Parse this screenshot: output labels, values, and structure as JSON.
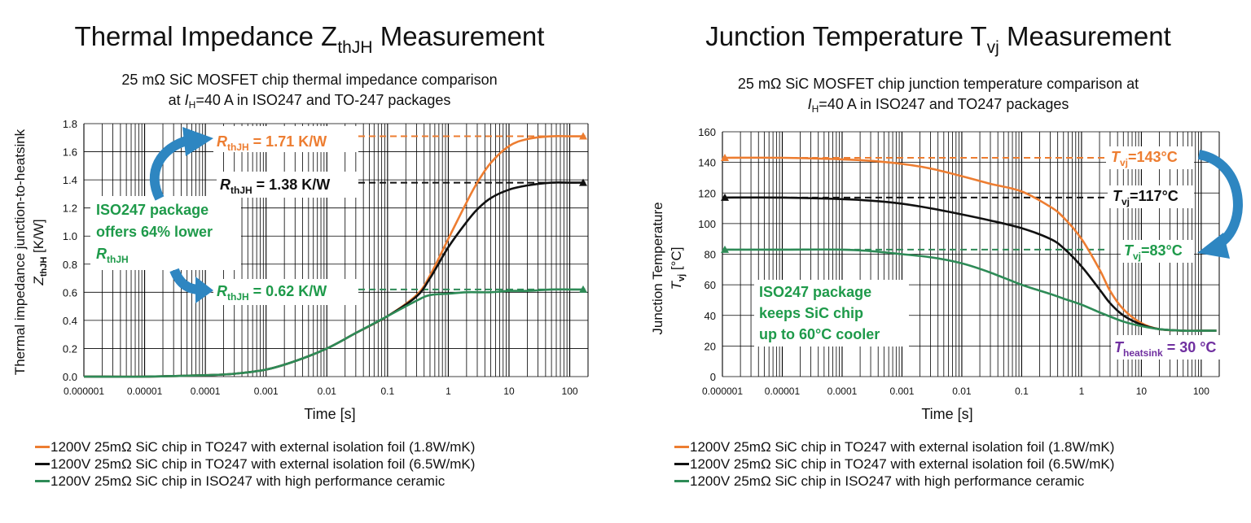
{
  "colors": {
    "orange": "#ed7d31",
    "black": "#111111",
    "green": "#2e8b57",
    "green_text": "#1e9a4a",
    "purple": "#7030a0",
    "arrow": "#2e86c1"
  },
  "icons": [
    "blue-curved-arrow-icon",
    "triangle-marker-icon"
  ],
  "left": {
    "title_main": "Thermal Impedance Z",
    "title_sub": "thJH",
    "title_tail": " Measurement",
    "subtitle_line1": "25 mΩ SiC MOSFET chip thermal impedance comparison",
    "subtitle_line2_pre": "at ",
    "subtitle_line2_var": "I",
    "subtitle_line2_sub": "H",
    "subtitle_line2_post": "=40 A in ISO247 and TO-247 packages",
    "ylabel_line1": "Thermal impedance junction-to-heatsink",
    "ylabel_var": "Z",
    "ylabel_sub": "thJH",
    "ylabel_unit": " [K/W]",
    "xlabel": "Time [s]",
    "annotations": {
      "r_orange_var": "R",
      "r_orange_sub": "thJH",
      "r_orange_val": " = 1.71 K/W",
      "r_black_var": "R",
      "r_black_sub": "thJH",
      "r_black_val": " = 1.38 K/W",
      "r_green_var": "R",
      "r_green_sub": "thJH",
      "r_green_val": " = 0.62 K/W",
      "callout_line1": "ISO247 package",
      "callout_line2": "offers 64% lower",
      "callout_var": "R",
      "callout_sub": "thJH"
    }
  },
  "right": {
    "title_main": "Junction Temperature T",
    "title_sub": "vj",
    "title_tail": " Measurement",
    "subtitle_line1": "25 mΩ SiC MOSFET chip junction temperature comparison at",
    "subtitle_line2_var": "I",
    "subtitle_line2_sub": "H",
    "subtitle_line2_post": "=40 A in ISO247 and TO247 packages",
    "ylabel_line1": "Junction Temperature",
    "ylabel_var": "T",
    "ylabel_sub": "vj",
    "ylabel_unit": " [°C]",
    "xlabel": "Time [s]",
    "annotations": {
      "t_orange_var": "T",
      "t_orange_sub": "vj",
      "t_orange_val": "=143°C",
      "t_black_var": "T",
      "t_black_sub": "vj",
      "t_black_val": "=117°C",
      "t_green_var": "T",
      "t_green_sub": "vj",
      "t_green_val": "=83°C",
      "callout_line1": "ISO247 package",
      "callout_line2": "keeps SiC chip",
      "callout_line3": "up to 60°C cooler",
      "heatsink_var": "T",
      "heatsink_sub": "heatsink",
      "heatsink_val": " = 30 °C"
    }
  },
  "legend": [
    {
      "label": "1200V 25mΩ SiC chip in TO247 with external isolation foil (1.8W/mK)",
      "color": "#ed7d31"
    },
    {
      "label": "1200V 25mΩ SiC chip in TO247 with external isolation foil (6.5W/mK)",
      "color": "#111111"
    },
    {
      "label": "1200V 25mΩ SiC chip in ISO247 with high performance ceramic",
      "color": "#2e8b57"
    }
  ],
  "chart_data": [
    {
      "type": "line",
      "title": "Thermal Impedance ZthJH Measurement",
      "subtitle": "25 mΩ SiC MOSFET chip thermal impedance comparison at IH=40 A in ISO247 and TO-247 packages",
      "xlabel": "Time [s]",
      "ylabel": "Thermal impedance junction-to-heatsink ZthJH [K/W]",
      "xscale": "log",
      "xlim": [
        1e-06,
        200
      ],
      "ylim": [
        0,
        1.8
      ],
      "xticks": [
        1e-06,
        1e-05,
        0.0001,
        0.001,
        0.01,
        0.1,
        1,
        10,
        100
      ],
      "xtick_labels": [
        "0.000001",
        "0.00001",
        "0.0001",
        "0.001",
        "0.01",
        "0.1",
        "1",
        "10",
        "100"
      ],
      "yticks": [
        0,
        0.2,
        0.4,
        0.6,
        0.8,
        1.0,
        1.2,
        1.4,
        1.6,
        1.8
      ],
      "ytick_labels": [
        "0.0",
        "0.2",
        "0.4",
        "0.6",
        "0.8",
        "1.0",
        "1.2",
        "1.4",
        "1.6",
        "1.8"
      ],
      "grid": true,
      "series": [
        {
          "name": "1200V 25mΩ SiC chip in TO247 with external isolation foil (1.8W/mK)",
          "color": "#ed7d31",
          "steady_state": 1.71,
          "x": [
            1e-06,
            1e-05,
            0.0001,
            0.0003,
            0.001,
            0.003,
            0.01,
            0.03,
            0.1,
            0.3,
            0.5,
            1,
            2,
            3,
            5,
            10,
            20,
            50,
            100,
            180
          ],
          "y": [
            0.0,
            0.0,
            0.01,
            0.02,
            0.05,
            0.11,
            0.2,
            0.31,
            0.43,
            0.58,
            0.72,
            0.98,
            1.24,
            1.38,
            1.52,
            1.64,
            1.69,
            1.71,
            1.71,
            1.71
          ]
        },
        {
          "name": "1200V 25mΩ SiC chip in TO247 with external isolation foil (6.5W/mK)",
          "color": "#111111",
          "steady_state": 1.38,
          "x": [
            1e-06,
            1e-05,
            0.0001,
            0.0003,
            0.001,
            0.003,
            0.01,
            0.03,
            0.1,
            0.3,
            0.5,
            1,
            2,
            3,
            5,
            10,
            20,
            50,
            100,
            180
          ],
          "y": [
            0.0,
            0.0,
            0.01,
            0.02,
            0.05,
            0.11,
            0.2,
            0.31,
            0.43,
            0.57,
            0.7,
            0.92,
            1.1,
            1.19,
            1.27,
            1.33,
            1.36,
            1.38,
            1.38,
            1.38
          ]
        },
        {
          "name": "1200V 25mΩ SiC chip in ISO247 with high performance ceramic",
          "color": "#2e8b57",
          "steady_state": 0.62,
          "x": [
            1e-06,
            1e-05,
            0.0001,
            0.0003,
            0.001,
            0.003,
            0.01,
            0.03,
            0.1,
            0.3,
            0.5,
            1,
            2,
            5,
            10,
            20,
            50,
            100,
            180
          ],
          "y": [
            0.0,
            0.0,
            0.01,
            0.02,
            0.05,
            0.11,
            0.2,
            0.31,
            0.43,
            0.54,
            0.58,
            0.59,
            0.6,
            0.6,
            0.61,
            0.61,
            0.62,
            0.62,
            0.62
          ]
        }
      ]
    },
    {
      "type": "line",
      "title": "Junction Temperature Tvj Measurement",
      "subtitle": "25 mΩ SiC MOSFET chip junction temperature comparison at IH=40 A in ISO247 and TO247 packages",
      "xlabel": "Time [s]",
      "ylabel": "Junction Temperature Tvj [°C]",
      "xscale": "log",
      "xlim": [
        1e-06,
        200
      ],
      "ylim": [
        0,
        160
      ],
      "xticks": [
        1e-06,
        1e-05,
        0.0001,
        0.001,
        0.01,
        0.1,
        1,
        10,
        100
      ],
      "xtick_labels": [
        "0.000001",
        "0.00001",
        "0.0001",
        "0.001",
        "0.01",
        "0.1",
        "1",
        "10",
        "100"
      ],
      "yticks": [
        0,
        20,
        40,
        60,
        80,
        100,
        120,
        140,
        160
      ],
      "ytick_labels": [
        "0",
        "20",
        "40",
        "60",
        "80",
        "100",
        "120",
        "140",
        "160"
      ],
      "grid": true,
      "series": [
        {
          "name": "1200V 25mΩ SiC chip in TO247 with external isolation foil (1.8W/mK)",
          "color": "#ed7d31",
          "initial": 143,
          "x": [
            1e-06,
            1e-05,
            0.0001,
            0.0003,
            0.001,
            0.003,
            0.01,
            0.03,
            0.1,
            0.3,
            0.5,
            1,
            2,
            3,
            5,
            10,
            20,
            50,
            100,
            180
          ],
          "y": [
            143,
            143,
            142,
            141,
            139,
            136,
            131,
            126,
            121,
            111,
            104,
            90,
            70,
            56,
            44,
            35,
            31,
            30,
            30,
            30
          ]
        },
        {
          "name": "1200V 25mΩ SiC chip in TO247 with external isolation foil (6.5W/mK)",
          "color": "#111111",
          "initial": 117,
          "x": [
            1e-06,
            1e-05,
            0.0001,
            0.0003,
            0.001,
            0.003,
            0.01,
            0.03,
            0.1,
            0.3,
            0.5,
            1,
            2,
            3,
            5,
            10,
            20,
            50,
            100,
            180
          ],
          "y": [
            117,
            117,
            116,
            115,
            113,
            110,
            106,
            102,
            97,
            90,
            84,
            72,
            57,
            48,
            40,
            34,
            31,
            30,
            30,
            30
          ]
        },
        {
          "name": "1200V 25mΩ SiC chip in ISO247 with high performance ceramic",
          "color": "#2e8b57",
          "initial": 83,
          "x": [
            1e-06,
            1e-05,
            0.0001,
            0.0003,
            0.001,
            0.003,
            0.01,
            0.03,
            0.1,
            0.3,
            0.5,
            1,
            2,
            5,
            10,
            20,
            50,
            100,
            180
          ],
          "y": [
            83,
            83,
            83,
            82,
            80,
            78,
            74,
            68,
            60,
            54,
            51,
            47,
            42,
            36,
            33,
            31,
            30,
            30,
            30
          ]
        }
      ]
    }
  ]
}
